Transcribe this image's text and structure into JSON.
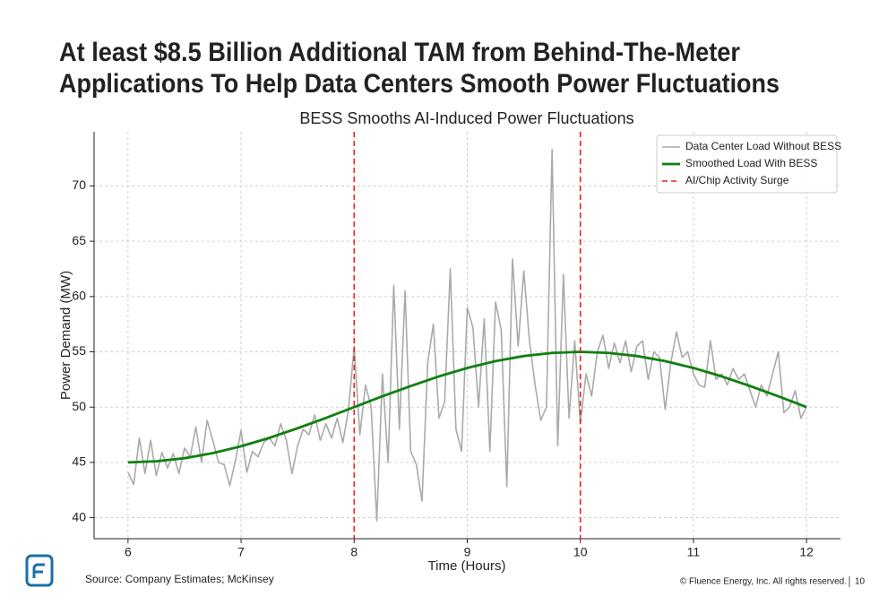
{
  "slide": {
    "title_lines": [
      "At least $8.5 Billion Additional TAM from Behind-The-Meter",
      "Applications To Help Data Centers Smooth Power Fluctuations"
    ],
    "source": "Source: Company Estimates; McKinsey",
    "footer": "© Fluence Energy, Inc. All rights reserved.",
    "page_number": "10"
  },
  "chart_data": {
    "type": "line",
    "title": "BESS Smooths AI-Induced Power Fluctuations",
    "x_label": "Time (Hours)",
    "y_label": "Power Demand (MW)",
    "xlim": [
      5.7,
      12.3
    ],
    "ylim": [
      38.1,
      74.9
    ],
    "xticks": [
      6,
      7,
      8,
      9,
      10,
      11,
      12
    ],
    "yticks": [
      40,
      45,
      50,
      55,
      60,
      65,
      70
    ],
    "grid": true,
    "legend": "upper right",
    "series": [
      {
        "name": "Data Center Load Without BESS",
        "color": "#aaaaaa",
        "x": [
          6.0,
          6.05,
          6.1,
          6.15,
          6.2,
          6.25,
          6.3,
          6.35,
          6.4,
          6.45,
          6.5,
          6.55,
          6.6,
          6.65,
          6.7,
          6.75,
          6.8,
          6.85,
          6.9,
          6.95,
          7.0,
          7.05,
          7.1,
          7.15,
          7.2,
          7.25,
          7.3,
          7.35,
          7.4,
          7.45,
          7.5,
          7.55,
          7.6,
          7.65,
          7.7,
          7.75,
          7.8,
          7.85,
          7.9,
          7.95,
          8.0,
          8.05,
          8.1,
          8.15,
          8.2,
          8.25,
          8.3,
          8.35,
          8.4,
          8.45,
          8.5,
          8.55,
          8.6,
          8.65,
          8.7,
          8.75,
          8.8,
          8.85,
          8.9,
          8.95,
          9.0,
          9.05,
          9.1,
          9.15,
          9.2,
          9.25,
          9.3,
          9.35,
          9.4,
          9.45,
          9.5,
          9.55,
          9.6,
          9.65,
          9.7,
          9.75,
          9.8,
          9.85,
          9.9,
          9.95,
          10.0,
          10.05,
          10.1,
          10.15,
          10.2,
          10.25,
          10.3,
          10.35,
          10.4,
          10.45,
          10.5,
          10.55,
          10.6,
          10.65,
          10.7,
          10.75,
          10.8,
          10.85,
          10.9,
          10.95,
          11.0,
          11.05,
          11.1,
          11.15,
          11.2,
          11.25,
          11.3,
          11.35,
          11.4,
          11.45,
          11.5,
          11.55,
          11.6,
          11.65,
          11.7,
          11.75,
          11.8,
          11.85,
          11.9,
          11.95,
          12.0
        ],
        "values": [
          44.1,
          43,
          47.2,
          44,
          47,
          43.8,
          45.9,
          44.5,
          45.8,
          44,
          46.3,
          45.5,
          48.2,
          45,
          48.8,
          47,
          45,
          44.8,
          42.9,
          45.2,
          47.9,
          44.1,
          46,
          45.5,
          46.8,
          47.2,
          46.5,
          48.5,
          47,
          44,
          46.5,
          48,
          47.5,
          49.3,
          47,
          48.5,
          47.2,
          49,
          46.8,
          49.8,
          55.5,
          47.5,
          52,
          50,
          39.7,
          53,
          45,
          61,
          48,
          60.5,
          46,
          44.8,
          41.5,
          54,
          57.5,
          49,
          50.5,
          62.5,
          48,
          46,
          59,
          57.2,
          50,
          58,
          46,
          59.5,
          57,
          42.8,
          63.4,
          55.5,
          62.3,
          56,
          52,
          48.8,
          50,
          73.3,
          46.5,
          62,
          49,
          56,
          48.5,
          53,
          51,
          55,
          56.5,
          53.5,
          55.8,
          54,
          56,
          53.2,
          55.5,
          56,
          52.5,
          55,
          54.5,
          49.8,
          54,
          56.8,
          54.5,
          55,
          53,
          52,
          51.8,
          56,
          52.5,
          53,
          52,
          53.5,
          52.5,
          53,
          51.5,
          50,
          52,
          51,
          53,
          55,
          49.5,
          50,
          51.5,
          49,
          50
        ]
      },
      {
        "name": "Smoothed Load With BESS",
        "color": "#118011",
        "x": [
          6,
          6.25,
          6.5,
          6.75,
          7,
          7.25,
          7.5,
          7.75,
          8,
          8.25,
          8.5,
          8.75,
          9,
          9.25,
          9.5,
          9.75,
          10,
          10.25,
          10.5,
          10.75,
          11,
          11.25,
          11.5,
          11.75,
          12
        ],
        "values": [
          45,
          45.1,
          45.38,
          45.84,
          46.46,
          47.22,
          48.09,
          49.02,
          50,
          50.98,
          51.91,
          52.78,
          53.54,
          54.16,
          54.62,
          54.9,
          55,
          54.9,
          54.62,
          54.16,
          53.54,
          52.78,
          51.91,
          50.98,
          50
        ]
      }
    ],
    "vlines": {
      "name": "AI/Chip Activity Surge",
      "color": "#e8221f",
      "x": [
        8,
        10
      ]
    }
  }
}
